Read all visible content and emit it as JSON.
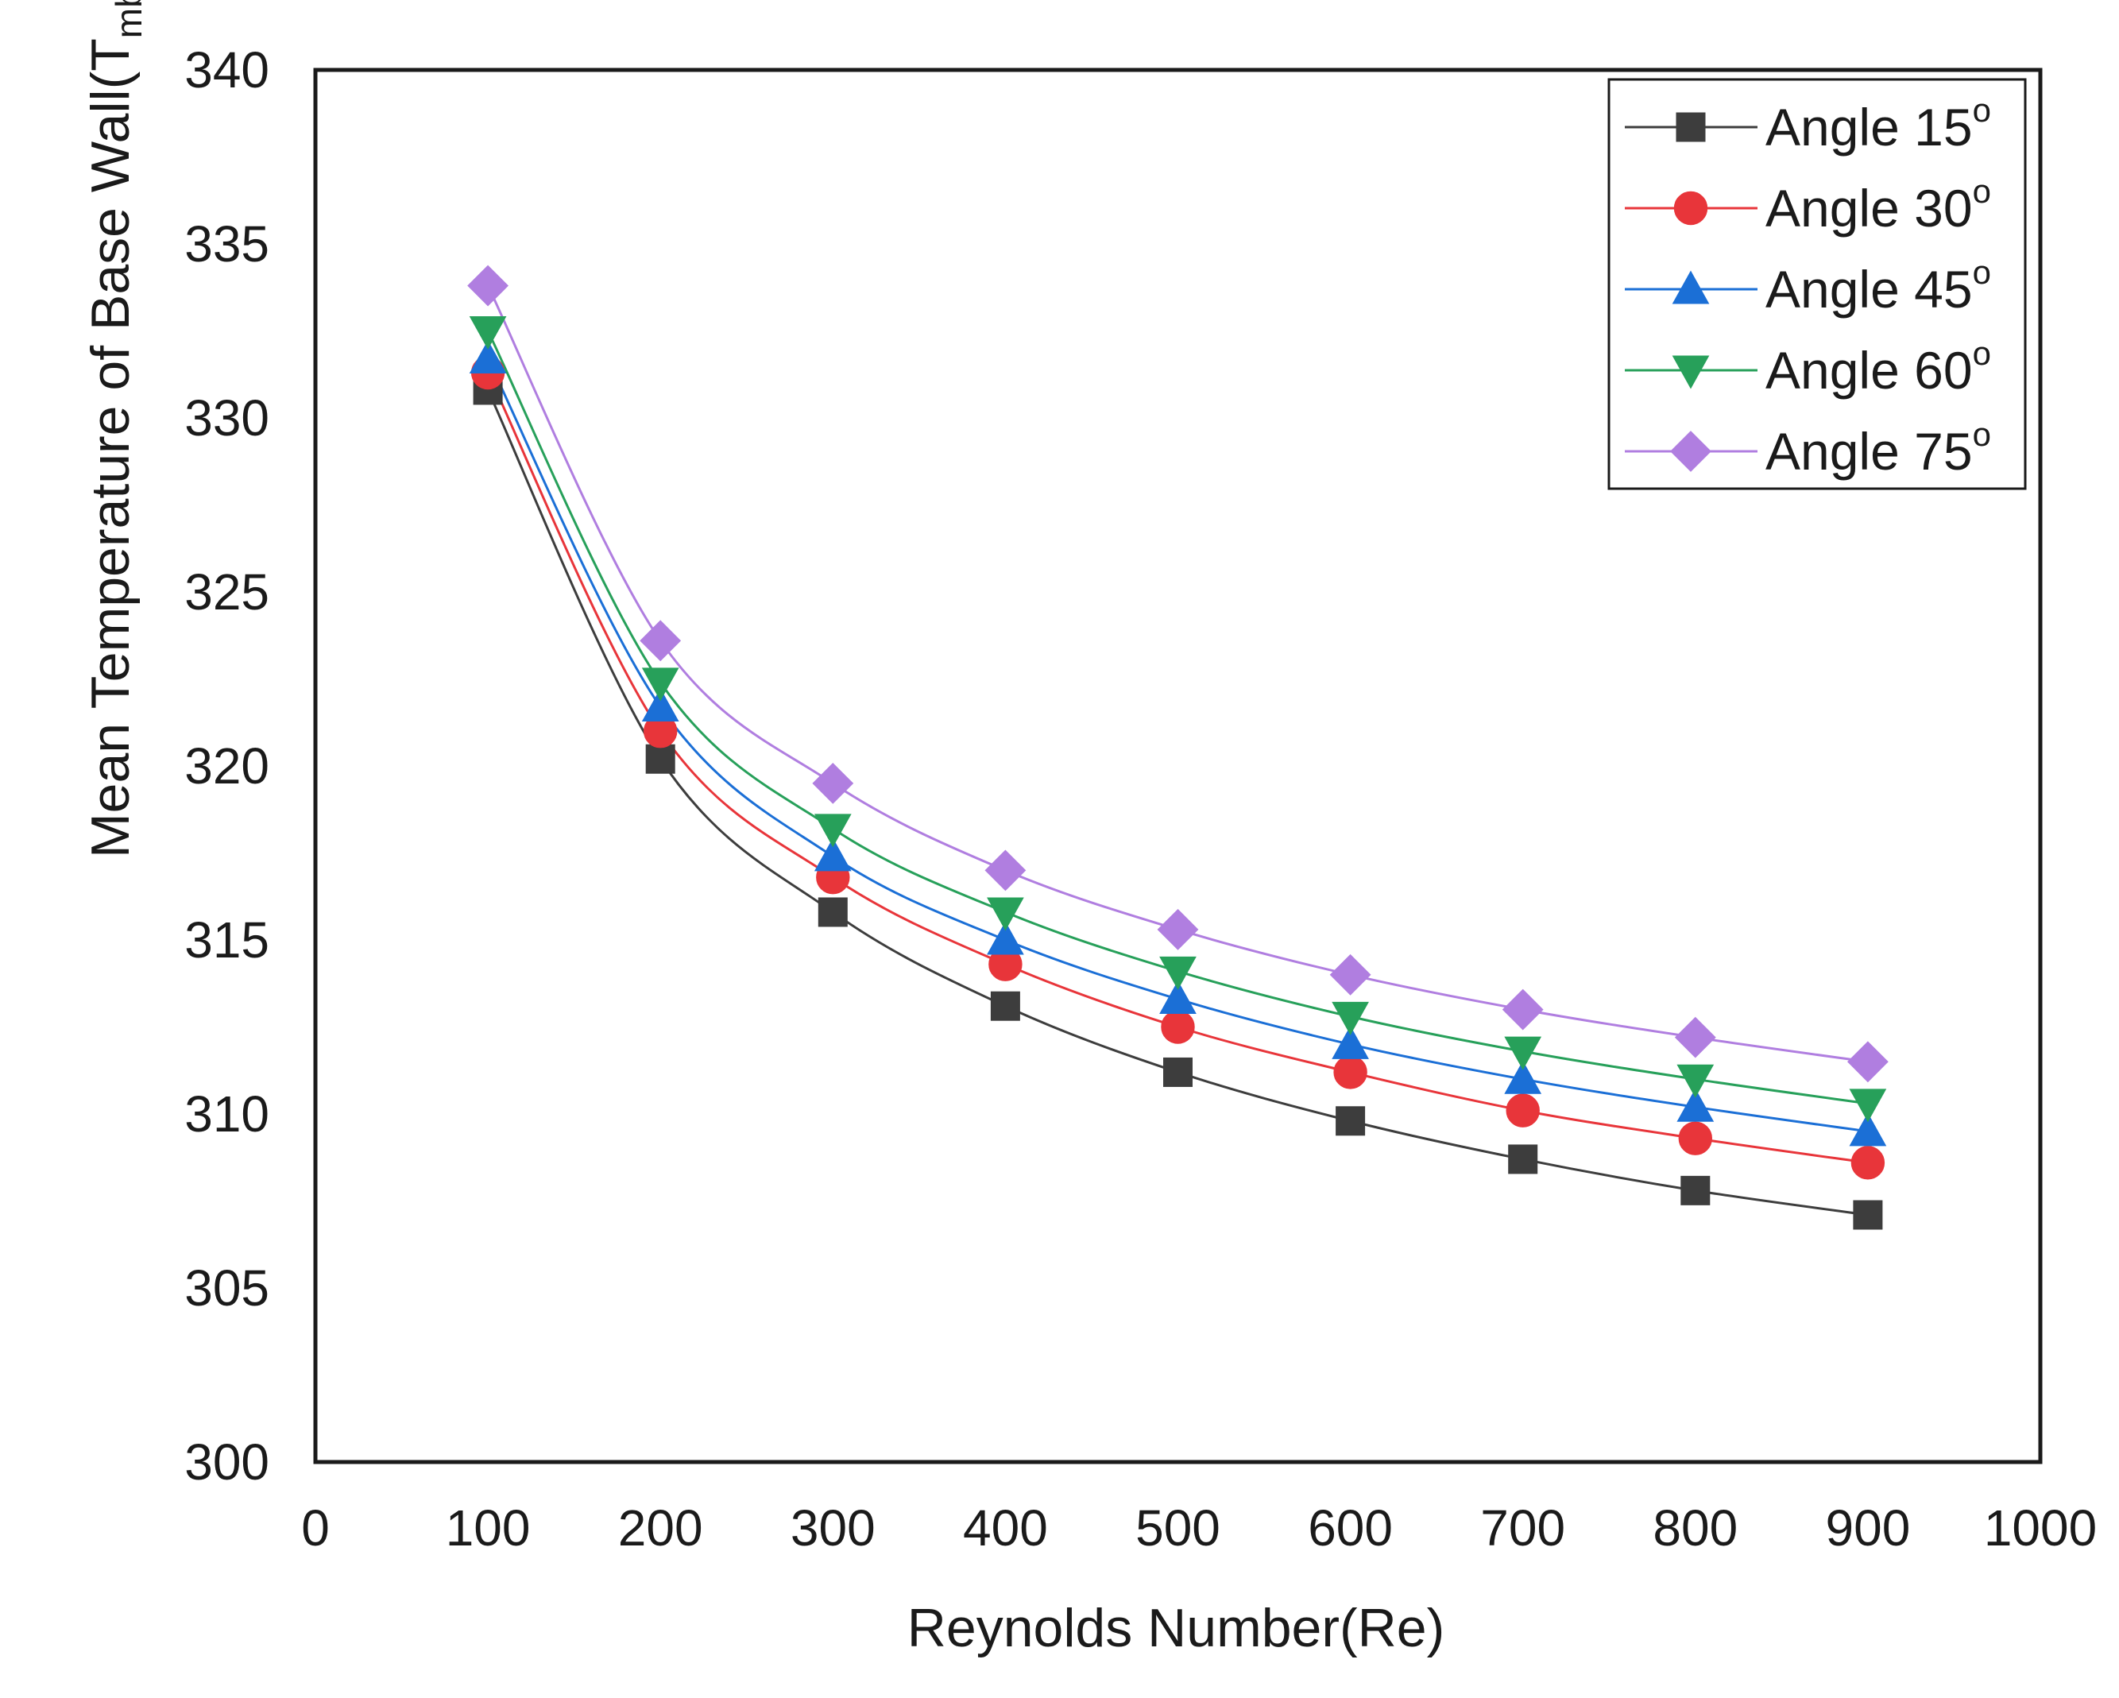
{
  "chart_data": {
    "type": "line",
    "title": "",
    "xlabel": "Reynolds Number(Re)",
    "ylabel": {
      "main": "Mean Temperature of Base Wall(T",
      "sub": "mb",
      "close": ")"
    },
    "xlim": [
      0,
      1000
    ],
    "ylim": [
      300,
      340
    ],
    "xticks": [
      0,
      100,
      200,
      300,
      400,
      500,
      600,
      700,
      800,
      900,
      1000
    ],
    "yticks": [
      300,
      305,
      310,
      315,
      320,
      325,
      330,
      335,
      340
    ],
    "grid": false,
    "legend_position": "top-right",
    "x": [
      100,
      200,
      300,
      400,
      500,
      600,
      700,
      800,
      900
    ],
    "series": [
      {
        "name": "Angle 15",
        "sup": "o",
        "color": "#3d3d3d",
        "marker": "square",
        "values": [
          330.8,
          320.2,
          315.8,
          313.1,
          311.2,
          309.8,
          308.7,
          307.8,
          307.1
        ]
      },
      {
        "name": "Angle 30",
        "sup": "o",
        "color": "#e8353a",
        "marker": "circle",
        "values": [
          331.3,
          321.0,
          316.8,
          314.3,
          312.5,
          311.2,
          310.1,
          309.3,
          308.6
        ]
      },
      {
        "name": "Angle 45",
        "sup": "o",
        "color": "#1b6fd6",
        "marker": "triangle-up",
        "values": [
          331.7,
          321.7,
          317.4,
          315.0,
          313.3,
          312.0,
          311.0,
          310.2,
          309.5
        ]
      },
      {
        "name": "Angle 60",
        "sup": "o",
        "color": "#27a05a",
        "marker": "triangle-down",
        "values": [
          332.5,
          322.4,
          318.2,
          315.8,
          314.1,
          312.8,
          311.8,
          311.0,
          310.3
        ]
      },
      {
        "name": "Angle 75",
        "sup": "o",
        "color": "#b07ee0",
        "marker": "diamond",
        "values": [
          333.8,
          323.6,
          319.5,
          317.0,
          315.3,
          314.0,
          313.0,
          312.2,
          311.5
        ]
      }
    ]
  }
}
